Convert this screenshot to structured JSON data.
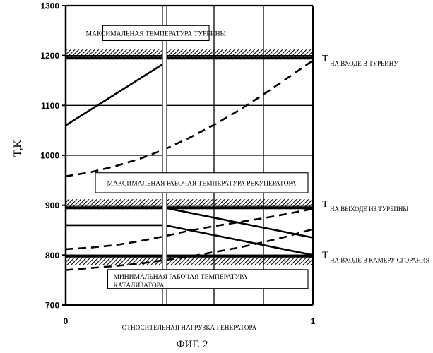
{
  "chart_data": {
    "type": "line",
    "ylabel": "T,K",
    "xlabel": "ОТНОСИТЕЛЬНАЯ НАГРУЗКА ГЕНЕРАТОРА",
    "figure_caption": "ФИГ. 2",
    "xlim": [
      0,
      1
    ],
    "ylim": [
      700,
      1300
    ],
    "x_ticks": [
      {
        "value": 0,
        "label": "0"
      },
      {
        "value": 1,
        "label": "1"
      }
    ],
    "y_ticks": [
      {
        "value": 700,
        "label": "700"
      },
      {
        "value": 800,
        "label": "800"
      },
      {
        "value": 900,
        "label": "900"
      },
      {
        "value": 1000,
        "label": "1000"
      },
      {
        "value": 1100,
        "label": "1100"
      },
      {
        "value": 1200,
        "label": "1200"
      },
      {
        "value": 1300,
        "label": "1300"
      }
    ],
    "x_gridlines": [
      0.4,
      0.6,
      0.8
    ],
    "y_gridlines": [
      800,
      900,
      1000,
      1100,
      1200
    ],
    "axis_break_x": 0.4,
    "limit_bands": [
      {
        "label": "МАКСИМАЛЬНАЯ ТЕМПЕРАТУРА ТУРБИНЫ",
        "y_bottom": 1192,
        "y_top": 1212,
        "solid_line_y": 1195,
        "label_box_y": [
          1230,
          1260
        ],
        "label_box_x": [
          0.15,
          0.58
        ]
      },
      {
        "label": "МАКСИМАЛЬНАЯ РАБОЧАЯ ТЕМПЕРАТУРА РЕКУПЕРАТОРА",
        "y_bottom": 892,
        "y_top": 912,
        "solid_line_y": 895,
        "label_box_y": [
          925,
          965
        ],
        "label_box_x": [
          0.12,
          0.98
        ]
      },
      {
        "label_lines": [
          "МИНИМАЛЬНАЯ РАБОЧАЯ ТЕМПЕРАТУРА",
          "КАТАЛИЗАТОРА"
        ],
        "y_bottom": 780,
        "y_top": 800,
        "solid_line_y": 798,
        "label_box_y": [
          733,
          771
        ],
        "label_box_x": [
          0.17,
          0.98
        ]
      }
    ],
    "series": [
      {
        "label": "T НА ВХОДЕ В ТУРБИНУ",
        "label_main": "T",
        "label_sub": "НА ВХОДЕ В ТУРБИНУ",
        "label_y": 1188,
        "style": "solid",
        "segments": [
          {
            "x": [
              0,
              0.4
            ],
            "y": [
              1060,
              1185
            ]
          },
          {
            "x": [
              0.4,
              1
            ],
            "y": [
              1195,
              1195
            ]
          }
        ]
      },
      {
        "label": "T НА ВХОДЕ В ТУРБИНУ",
        "style": "dashed",
        "segments": [
          {
            "x": [
              0,
              0.1,
              0.2,
              0.3,
              0.4,
              0.5,
              0.6,
              0.7,
              0.8,
              0.9,
              1.0
            ],
            "y": [
              958,
              966,
              978,
              993,
              1012,
              1035,
              1061,
              1090,
              1122,
              1156,
              1190
            ]
          }
        ]
      },
      {
        "label": "T НА ВЫХОДЕ ИЗ ТУРБИНЫ",
        "label_main": "T",
        "label_sub": "НА  ВЫХОДЕ  ИЗ ТУРБИНЫ",
        "label_y": 897,
        "style": "solid",
        "segments": [
          {
            "x": [
              0,
              0.4
            ],
            "y": [
              895,
              895
            ]
          },
          {
            "x": [
              0.4,
              1
            ],
            "y": [
              895,
              835
            ]
          }
        ]
      },
      {
        "label": "T НА ВЫХОДЕ ИЗ ТУРБИНЫ",
        "style": "dashed",
        "segments": [
          {
            "x": [
              0,
              0.1,
              0.2,
              0.3,
              0.4,
              0.5,
              0.6,
              0.7,
              0.8,
              0.9,
              1.0
            ],
            "y": [
              812,
              815,
              820,
              828,
              838,
              849,
              858,
              866,
              874,
              883,
              893
            ]
          }
        ]
      },
      {
        "label": "T НА ВХОДЕ В КАМЕРУ СГОРАНИЯ",
        "label_main": "T",
        "label_sub": "НА ВХОДЕ В КАМЕРУ СГОРАНИЯ",
        "label_y": 794,
        "style": "solid",
        "segments": [
          {
            "x": [
              0,
              0.4
            ],
            "y": [
              860,
              860
            ]
          },
          {
            "x": [
              0.4,
              1
            ],
            "y": [
              860,
              800
            ]
          }
        ]
      },
      {
        "label": "T НА ВХОДЕ В КАМЕРУ СГОРАНИЯ",
        "style": "dashed",
        "segments": [
          {
            "x": [
              0,
              0.1,
              0.2,
              0.3,
              0.4,
              0.5,
              0.6,
              0.7,
              0.8,
              0.9,
              1.0
            ],
            "y": [
              770,
              774,
              778,
              783,
              790,
              797,
              806,
              815,
              826,
              838,
              852
            ]
          }
        ]
      }
    ]
  }
}
